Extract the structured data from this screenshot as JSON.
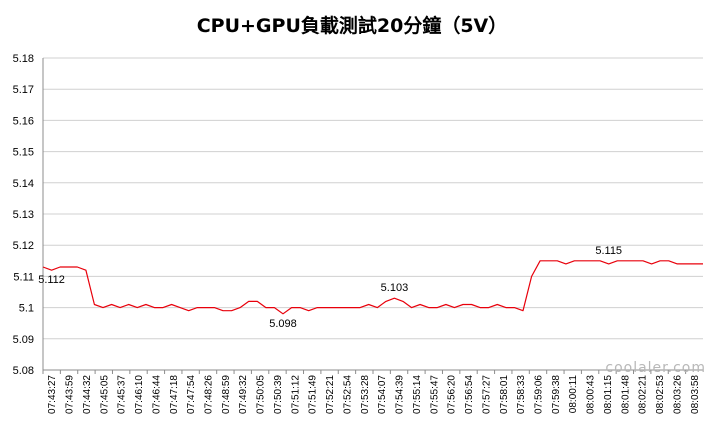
{
  "chart_data": {
    "type": "line",
    "title": "CPU+GPU負載測試20分鐘（5V）",
    "xlabel": "",
    "ylabel": "",
    "ylim": [
      5.08,
      5.18
    ],
    "y_ticks": [
      "5.08",
      "5.09",
      "5.1",
      "5.11",
      "5.12",
      "5.13",
      "5.14",
      "5.15",
      "5.16",
      "5.17",
      "5.18"
    ],
    "grid": "horizontal",
    "legend": "none",
    "series_color": "#e8000b",
    "x_ticks": [
      "07:43:27",
      "07:43:59",
      "07:44:32",
      "07:45:05",
      "07:45:37",
      "07:46:10",
      "07:46:44",
      "07:47:18",
      "07:47:54",
      "07:48:26",
      "07:48:59",
      "07:49:32",
      "07:50:05",
      "07:50:39",
      "07:51:12",
      "07:51:49",
      "07:52:21",
      "07:52:54",
      "07:53:28",
      "07:54:07",
      "07:54:39",
      "07:55:14",
      "07:55:47",
      "07:56:20",
      "07:56:54",
      "07:57:27",
      "07:58:01",
      "07:58:33",
      "07:59:06",
      "07:59:38",
      "08:00:11",
      "08:00:43",
      "08:01:15",
      "08:01:48",
      "08:02:21",
      "08:02:53",
      "08:03:26",
      "08:03:58"
    ],
    "series": [
      {
        "values": [
          5.113,
          5.112,
          5.113,
          5.113,
          5.113,
          5.112,
          5.101,
          5.1,
          5.101,
          5.1,
          5.101,
          5.1,
          5.101,
          5.1,
          5.1,
          5.101,
          5.1,
          5.099,
          5.1,
          5.1,
          5.1,
          5.099,
          5.099,
          5.1,
          5.102,
          5.102,
          5.1,
          5.1,
          5.098,
          5.1,
          5.1,
          5.099,
          5.1,
          5.1,
          5.1,
          5.1,
          5.1,
          5.1,
          5.101,
          5.1,
          5.102,
          5.103,
          5.102,
          5.1,
          5.101,
          5.1,
          5.1,
          5.101,
          5.1,
          5.101,
          5.101,
          5.1,
          5.1,
          5.101,
          5.1,
          5.1,
          5.099,
          5.11,
          5.115,
          5.115,
          5.115,
          5.114,
          5.115,
          5.115,
          5.115,
          5.115,
          5.114,
          5.115,
          5.115,
          5.115,
          5.115,
          5.114,
          5.115,
          5.115,
          5.114,
          5.114,
          5.114,
          5.114
        ]
      }
    ],
    "annotations": [
      "5.112",
      "5.098",
      "5.103",
      "5.115"
    ]
  },
  "watermark": "coolaler.com"
}
